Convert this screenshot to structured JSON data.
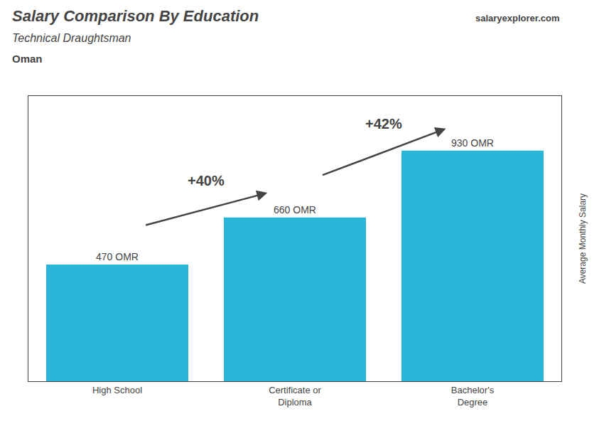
{
  "chart_data": {
    "type": "bar",
    "title": "Salary Comparison By Education",
    "subtitle": "Technical Draughtsman",
    "country": "Oman",
    "source": "salaryexplorer.com",
    "ylabel": "Average Monthly Salary",
    "categories": [
      "High School",
      "Certificate or\nDiploma",
      "Bachelor's\nDegree"
    ],
    "values": [
      470,
      660,
      930
    ],
    "value_labels": [
      "470 OMR",
      "660 OMR",
      "930 OMR"
    ],
    "data_labels": true,
    "annotations": [
      "+40%",
      "+42%"
    ],
    "color": "#29b6d8",
    "ylim": [
      0,
      1150
    ],
    "tick_labels": "x",
    "grid": false
  }
}
